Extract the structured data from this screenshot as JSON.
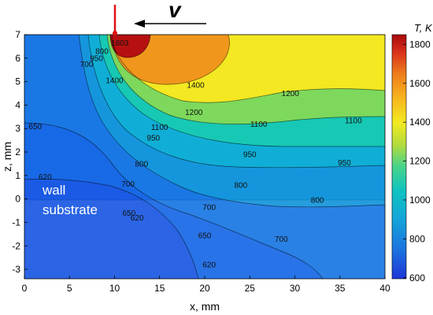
{
  "chart_data": {
    "type": "heatmap",
    "subtype": "filled-contour",
    "xlabel": "x, mm",
    "ylabel": "z, mm",
    "xlim": [
      0,
      40
    ],
    "ylim": [
      -3.4,
      7
    ],
    "x_ticks": [
      "0",
      "5",
      "10",
      "15",
      "20",
      "25",
      "30",
      "35",
      "40"
    ],
    "y_ticks": [
      "-3",
      "-2",
      "-1",
      "0",
      "1",
      "2",
      "3",
      "4",
      "5",
      "6",
      "7"
    ],
    "colorbar": {
      "label": "T, K",
      "range": [
        595,
        1850
      ],
      "ticks": [
        "600",
        "800",
        "1000",
        "1200",
        "1400",
        "1600",
        "1800"
      ]
    },
    "region_labels": [
      "wall",
      "substrate"
    ],
    "velocity_label": "v",
    "contour_levels": [
      620,
      650,
      700,
      800,
      950,
      1100,
      1200,
      1400,
      1803
    ],
    "contour_labels": [
      {
        "text": "1803",
        "x": 10.6,
        "z": 6.65
      },
      {
        "text": "1400",
        "x": 19.0,
        "z": 4.85
      },
      {
        "text": "1400",
        "x": 10.0,
        "z": 5.05
      },
      {
        "text": "1200",
        "x": 18.8,
        "z": 3.7
      },
      {
        "text": "1200",
        "x": 29.5,
        "z": 4.5
      },
      {
        "text": "1100",
        "x": 15.0,
        "z": 3.05
      },
      {
        "text": "1100",
        "x": 26.0,
        "z": 3.2
      },
      {
        "text": "1100",
        "x": 36.5,
        "z": 3.35
      },
      {
        "text": "950",
        "x": 14.3,
        "z": 2.6
      },
      {
        "text": "950",
        "x": 25.0,
        "z": 1.9
      },
      {
        "text": "950",
        "x": 35.5,
        "z": 1.55
      },
      {
        "text": "950",
        "x": 8.0,
        "z": 6.0
      },
      {
        "text": "800",
        "x": 13.0,
        "z": 1.5
      },
      {
        "text": "800",
        "x": 24.0,
        "z": 0.6
      },
      {
        "text": "800",
        "x": 32.5,
        "z": -0.05
      },
      {
        "text": "800",
        "x": 8.6,
        "z": 6.3
      },
      {
        "text": "700",
        "x": 11.5,
        "z": 0.65
      },
      {
        "text": "700",
        "x": 20.5,
        "z": -0.35
      },
      {
        "text": "700",
        "x": 28.5,
        "z": -1.7
      },
      {
        "text": "700",
        "x": 6.9,
        "z": 5.75
      },
      {
        "text": "650",
        "x": 1.2,
        "z": 3.1
      },
      {
        "text": "650",
        "x": 11.6,
        "z": -0.6
      },
      {
        "text": "650",
        "x": 20.0,
        "z": -1.55
      },
      {
        "text": "620",
        "x": 2.3,
        "z": 0.95
      },
      {
        "text": "620",
        "x": 12.5,
        "z": -0.8
      },
      {
        "text": "620",
        "x": 20.5,
        "z": -2.8
      }
    ]
  }
}
